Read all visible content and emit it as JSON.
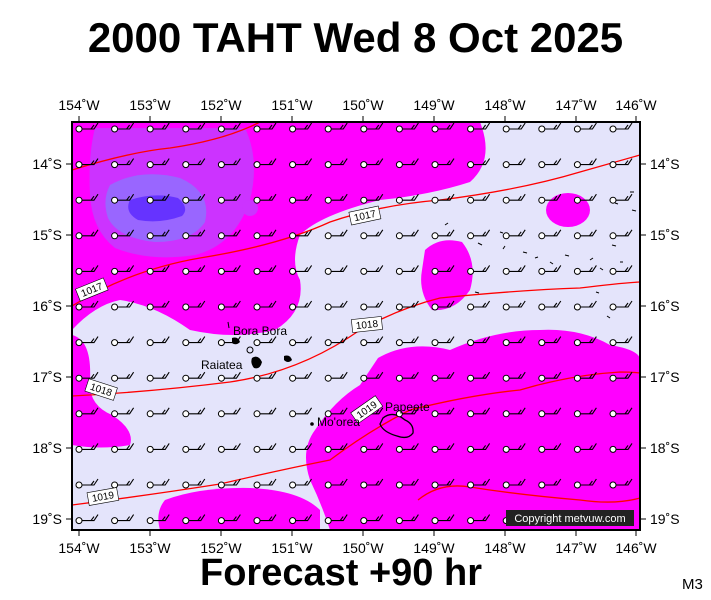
{
  "title": "2000 TAHT Wed 8 Oct 2025",
  "footer": "Forecast +90 hr",
  "code": "M3",
  "copyright": "Copyright metvuw.com",
  "colors": {
    "background": "#e4e4fb",
    "rain_light": "#ff00ff",
    "rain_medium": "#cc33ff",
    "rain_heavy": "#9966ff",
    "rain_extreme": "#6633ff",
    "isobar": "#ff0000",
    "land": "#000000"
  },
  "axes": {
    "lon_labels": [
      "154˚W",
      "153˚W",
      "152˚W",
      "151˚W",
      "150˚W",
      "149˚W",
      "148˚W",
      "147˚W",
      "146˚W"
    ],
    "lat_labels_left": [
      "14˚S",
      "15˚S",
      "16˚S",
      "17˚S",
      "18˚S",
      "19˚S"
    ],
    "lat_labels_right": [
      "14˚S",
      "15˚S",
      "16˚S",
      "17˚S",
      "18˚S",
      "19˚S"
    ]
  },
  "isobars": [
    {
      "label": "1017"
    },
    {
      "label": "1017"
    },
    {
      "label": "1018"
    },
    {
      "label": "1018"
    },
    {
      "label": "1019"
    },
    {
      "label": "1019"
    }
  ],
  "places": [
    {
      "name": "Bora Bora"
    },
    {
      "name": "Raiatea"
    },
    {
      "name": "Mo'orea"
    },
    {
      "name": "Papeete"
    }
  ],
  "wind_barbs": {
    "columns": 17,
    "rows": 12,
    "type": "light-wind-barb"
  }
}
